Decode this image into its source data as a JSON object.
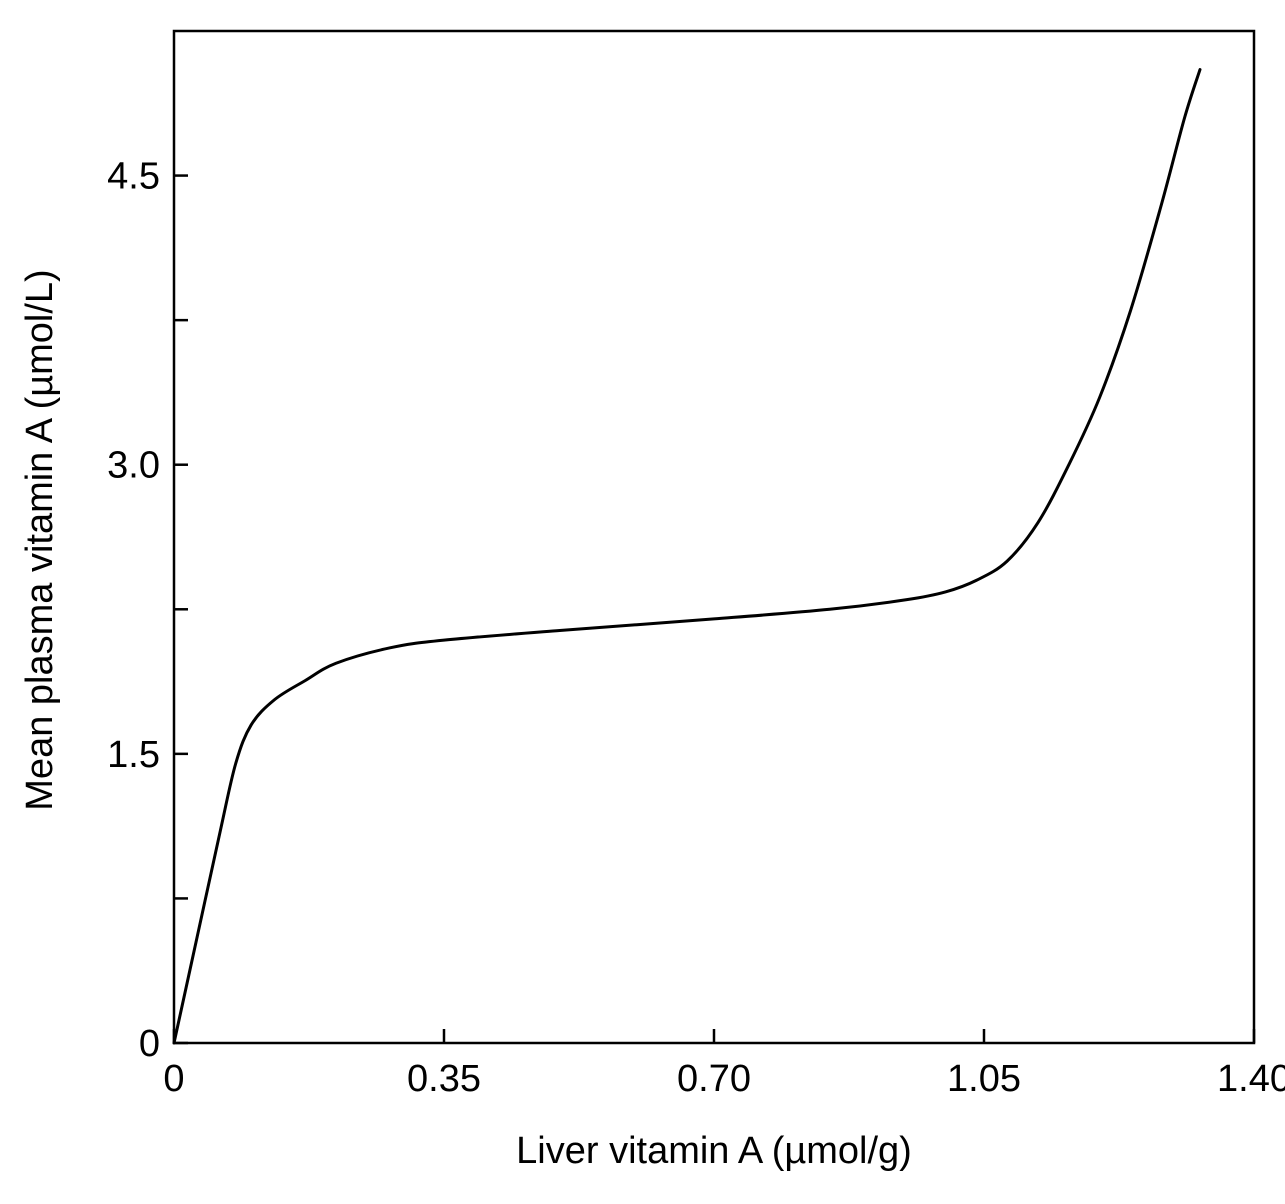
{
  "chart_data": {
    "type": "line",
    "title": "",
    "xlabel": "Liver vitamin A (µmol/g)",
    "ylabel": "Mean plasma vitamin A (µmol/L)",
    "xlim": [
      0,
      1.4
    ],
    "ylim": [
      0,
      5.25
    ],
    "x_ticks": [
      {
        "value": 0,
        "label": "0"
      },
      {
        "value": 0.35,
        "label": "0.35"
      },
      {
        "value": 0.7,
        "label": "0.70"
      },
      {
        "value": 1.05,
        "label": "1.05"
      },
      {
        "value": 1.4,
        "label": "1.40"
      }
    ],
    "y_ticks": [
      {
        "value": 0,
        "label": "0"
      },
      {
        "value": 0.75,
        "label": ""
      },
      {
        "value": 1.5,
        "label": "1.5"
      },
      {
        "value": 2.25,
        "label": ""
      },
      {
        "value": 3.0,
        "label": "3.0"
      },
      {
        "value": 3.75,
        "label": ""
      },
      {
        "value": 4.5,
        "label": "4.5"
      }
    ],
    "grid": false,
    "series": [
      {
        "color": "#000000",
        "x": [
          0,
          0.03,
          0.06,
          0.08,
          0.1,
          0.13,
          0.17,
          0.21,
          0.28,
          0.35,
          0.5,
          0.7,
          0.85,
          0.95,
          1.0,
          1.04,
          1.08,
          1.12,
          1.16,
          1.2,
          1.24,
          1.28,
          1.31,
          1.33
        ],
        "y": [
          0,
          0.55,
          1.1,
          1.45,
          1.65,
          1.78,
          1.88,
          1.97,
          2.05,
          2.09,
          2.14,
          2.2,
          2.25,
          2.3,
          2.34,
          2.4,
          2.5,
          2.7,
          3.0,
          3.35,
          3.8,
          4.35,
          4.8,
          5.05
        ]
      }
    ]
  }
}
